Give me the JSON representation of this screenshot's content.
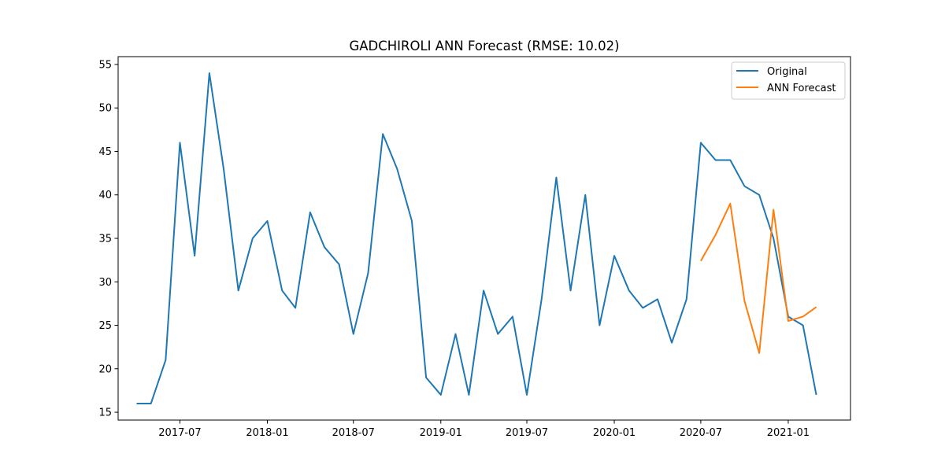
{
  "chart_data": {
    "type": "line",
    "title": "GADCHIROLI ANN Forecast (RMSE: 10.02)",
    "xlabel": "",
    "ylabel": "",
    "ylim": [
      14.1,
      55.9
    ],
    "xlim": [
      "2017-02-21",
      "2021-05-12"
    ],
    "x_ticks": [
      "2017-07",
      "2018-01",
      "2018-07",
      "2019-01",
      "2019-07",
      "2020-01",
      "2020-07",
      "2021-01"
    ],
    "y_ticks": [
      15,
      20,
      25,
      30,
      35,
      40,
      45,
      50,
      55
    ],
    "grid": false,
    "legend_position": "top-right",
    "series": [
      {
        "name": "Original",
        "color": "#1f77b4",
        "x": [
          "2017-04",
          "2017-05",
          "2017-06",
          "2017-07",
          "2017-08",
          "2017-09",
          "2017-10",
          "2017-11",
          "2017-12",
          "2018-01",
          "2018-02",
          "2018-03",
          "2018-04",
          "2018-05",
          "2018-06",
          "2018-07",
          "2018-08",
          "2018-09",
          "2018-10",
          "2018-11",
          "2018-12",
          "2019-01",
          "2019-02",
          "2019-03",
          "2019-04",
          "2019-05",
          "2019-06",
          "2019-07",
          "2019-08",
          "2019-09",
          "2019-10",
          "2019-11",
          "2019-12",
          "2020-01",
          "2020-02",
          "2020-03",
          "2020-04",
          "2020-05",
          "2020-06",
          "2020-07",
          "2020-08",
          "2020-09",
          "2020-10",
          "2020-11",
          "2020-12",
          "2021-01",
          "2021-02",
          "2021-03"
        ],
        "values": [
          16,
          16,
          21,
          46,
          33,
          54,
          43,
          29,
          35,
          37,
          29,
          27,
          38,
          34,
          32,
          24,
          31,
          47,
          43,
          37,
          19,
          17,
          24,
          17,
          29,
          24,
          26,
          17,
          28,
          42,
          29,
          40,
          25,
          33,
          29,
          27,
          28,
          23,
          28,
          46,
          44,
          44,
          41,
          40,
          35,
          26,
          25,
          17
        ]
      },
      {
        "name": "ANN Forecast",
        "color": "#ff7f0e",
        "x": [
          "2020-07",
          "2020-08",
          "2020-09",
          "2020-10",
          "2020-11",
          "2020-12",
          "2021-01",
          "2021-02",
          "2021-03"
        ],
        "values": [
          32.4,
          35.4,
          39,
          27.8,
          21.8,
          38.3,
          25.5,
          26,
          27.1
        ]
      }
    ]
  }
}
